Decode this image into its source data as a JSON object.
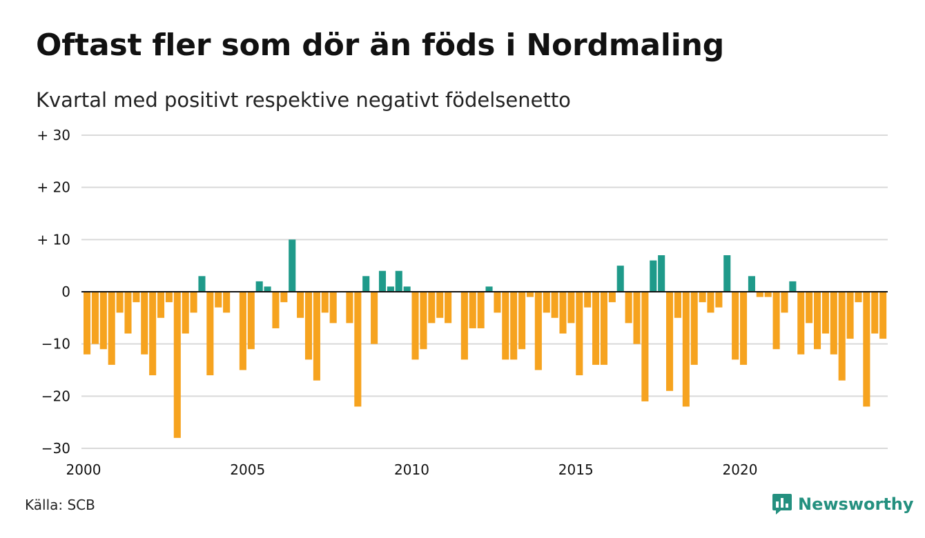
{
  "title": "Oftast fler som dör än föds i Nordmaling",
  "subtitle": "Kvartal med positivt respektive negativt födelsenetto",
  "source": "Källa: SCB",
  "brand": {
    "name": "Newsworthy",
    "icon": "newsworthy-logo-icon"
  },
  "colors": {
    "positive": "#1f9a8a",
    "negative": "#f6a31f",
    "grid": "#d9d9d9"
  },
  "chart_data": {
    "type": "bar",
    "xlabel": "",
    "ylabel": "",
    "ylim": [
      -30,
      30
    ],
    "x_start": 2000,
    "periods_per_year": 4,
    "x_ticks": [
      2000,
      2005,
      2010,
      2015,
      2020
    ],
    "y_ticks": [
      {
        "value": 30,
        "label": "+ 30"
      },
      {
        "value": 20,
        "label": "+ 20"
      },
      {
        "value": 10,
        "label": "+ 10"
      },
      {
        "value": 0,
        "label": "0"
      },
      {
        "value": -10,
        "label": "−10"
      },
      {
        "value": -20,
        "label": "−20"
      },
      {
        "value": -30,
        "label": "−30"
      }
    ],
    "grid": true,
    "values": [
      -12,
      -10,
      -11,
      -14,
      -4,
      -8,
      -2,
      -12,
      -16,
      -5,
      -2,
      -28,
      -8,
      -4,
      3,
      -16,
      -3,
      -4,
      0,
      -15,
      -11,
      2,
      1,
      -7,
      -2,
      10,
      -5,
      -13,
      -17,
      -4,
      -6,
      0,
      -6,
      -22,
      3,
      -10,
      4,
      1,
      4,
      1,
      -13,
      -11,
      -6,
      -5,
      -6,
      0,
      -13,
      -7,
      -7,
      1,
      -4,
      -13,
      -13,
      -11,
      -1,
      -15,
      -4,
      -5,
      -8,
      -6,
      -16,
      -3,
      -14,
      -14,
      -2,
      5,
      -6,
      -10,
      -21,
      6,
      7,
      -19,
      -5,
      -22,
      -14,
      -2,
      -4,
      -3,
      7,
      -13,
      -14,
      3,
      -1,
      -1,
      -11,
      -4,
      2,
      -12,
      -6,
      -11,
      -8,
      -12,
      -17,
      -9,
      -2,
      -22,
      -8,
      -9
    ]
  }
}
